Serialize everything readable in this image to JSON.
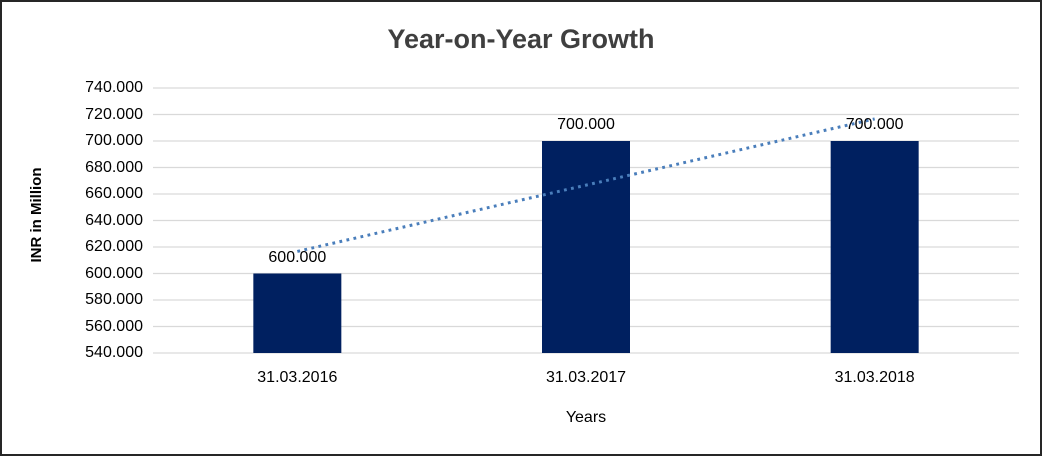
{
  "window": {
    "background_color": "#ffffff",
    "border_color": "#262626"
  },
  "chart_data": {
    "type": "bar",
    "title": "Year-on-Year Growth",
    "xlabel": "Years",
    "ylabel": "INR in Million",
    "categories": [
      "31.03.2016",
      "31.03.2017",
      "31.03.2018"
    ],
    "values": [
      600,
      700,
      700
    ],
    "value_labels": [
      "600.000",
      "700.000",
      "700.000"
    ],
    "ylim": [
      540,
      740
    ],
    "ytick_step": 20,
    "ytick_labels": [
      "740.000",
      "720.000",
      "700.000",
      "680.000",
      "660.000",
      "640.000",
      "620.000",
      "600.000",
      "580.000",
      "560.000",
      "540.000"
    ],
    "grid": true,
    "legend": false,
    "bar_color": "#002060",
    "gridline_color": "#d9d9d9",
    "axis_line_color": "#d9d9d9",
    "title_color": "#3f3f3f",
    "text_color": "#000000",
    "trendline": {
      "type": "linear",
      "style": "dotted",
      "color": "#4a7ebb",
      "fitted_values": [
        616.67,
        666.67,
        716.67
      ]
    }
  }
}
